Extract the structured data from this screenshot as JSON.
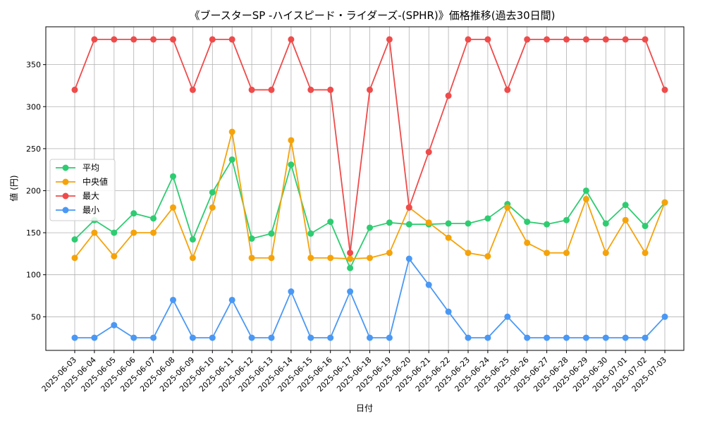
{
  "chart_data": {
    "type": "line",
    "title": "《ブースターSP -ハイスピード・ライダーズ-(SPHR)》価格推移(過去30日間)",
    "xlabel": "日付",
    "ylabel": "値 (円)",
    "ylim": [
      10,
      395
    ],
    "yticks": [
      50,
      100,
      150,
      200,
      250,
      300,
      350
    ],
    "grid": true,
    "legend_position": "center-left",
    "x": [
      "2025-06-03",
      "2025-06-04",
      "2025-06-05",
      "2025-06-06",
      "2025-06-07",
      "2025-06-08",
      "2025-06-09",
      "2025-06-10",
      "2025-06-11",
      "2025-06-12",
      "2025-06-13",
      "2025-06-14",
      "2025-06-15",
      "2025-06-16",
      "2025-06-17",
      "2025-06-18",
      "2025-06-19",
      "2025-06-20",
      "2025-06-21",
      "2025-06-22",
      "2025-06-23",
      "2025-06-24",
      "2025-06-25",
      "2025-06-26",
      "2025-06-27",
      "2025-06-28",
      "2025-06-29",
      "2025-06-30",
      "2025-07-01",
      "2025-07-02",
      "2025-07-03"
    ],
    "series": [
      {
        "name": "平均",
        "color": "#2ecc71",
        "values": [
          142,
          165,
          150,
          173,
          167,
          217,
          142,
          198,
          237,
          143,
          149,
          231,
          149,
          163,
          108,
          156,
          162,
          160,
          160,
          161,
          161,
          167,
          184,
          163,
          160,
          165,
          200,
          161,
          183,
          158,
          186
        ]
      },
      {
        "name": "中央値",
        "color": "#f5a30a",
        "values": [
          120,
          150,
          122,
          150,
          150,
          180,
          120,
          180,
          270,
          120,
          120,
          260,
          120,
          120,
          119,
          120,
          126,
          180,
          162,
          144,
          126,
          122,
          180,
          138,
          126,
          126,
          190,
          126,
          165,
          126,
          186
        ]
      },
      {
        "name": "最大",
        "color": "#ef4b4b",
        "values": [
          320,
          380,
          380,
          380,
          380,
          380,
          320,
          380,
          380,
          320,
          320,
          380,
          320,
          320,
          126,
          320,
          380,
          180,
          246,
          313,
          380,
          380,
          320,
          380,
          380,
          380,
          380,
          380,
          380,
          380,
          320
        ]
      },
      {
        "name": "最小",
        "color": "#4a98f5",
        "values": [
          25,
          25,
          40,
          25,
          25,
          70,
          25,
          25,
          70,
          25,
          25,
          80,
          25,
          25,
          80,
          25,
          25,
          119,
          88,
          56,
          25,
          25,
          50,
          25,
          25,
          25,
          25,
          25,
          25,
          25,
          50
        ]
      }
    ]
  }
}
